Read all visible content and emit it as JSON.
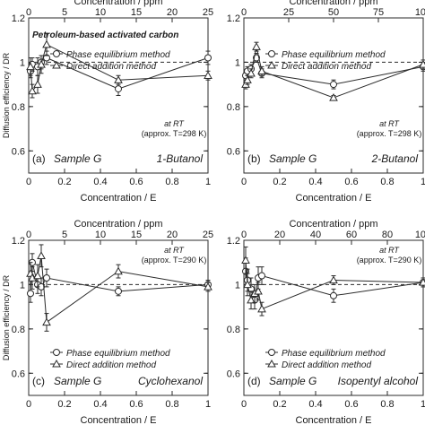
{
  "chart_data": [
    {
      "type": "line",
      "label": "(a)",
      "sample": "Sample G",
      "compound": "1-Butanol",
      "title": "Petroleum-based activated carbon",
      "condition_line1": "at RT",
      "condition_line2": "(approx. T=298 K)",
      "xlabel": "Concentration / E",
      "top_xlabel": "Concentration / ppm",
      "ylabel": "Diffusion efficiency / DR",
      "xlim": [
        0,
        1
      ],
      "ylim": [
        0.5,
        1.2
      ],
      "xticks": [
        "0",
        "0.2",
        "0.4",
        "0.6",
        "0.8",
        "1"
      ],
      "yticks": [
        "0.6",
        "0.8",
        "1",
        "1.2"
      ],
      "top_xlim": [
        0,
        25
      ],
      "top_xticks": [
        "0",
        "5",
        "10",
        "15",
        "20",
        "25"
      ],
      "reference_line": 1,
      "series": [
        {
          "name": "Phase equilibrium method",
          "marker": "circle",
          "x": [
            0.01,
            0.02,
            0.05,
            0.07,
            0.1,
            0.5,
            1.0
          ],
          "y": [
            0.96,
            0.99,
            0.98,
            1.0,
            1.02,
            0.88,
            1.02
          ],
          "err": [
            0.03,
            0.03,
            0.04,
            0.03,
            0.03,
            0.03,
            0.03
          ]
        },
        {
          "name": "Direct addition method",
          "marker": "triangle",
          "x": [
            0.01,
            0.02,
            0.05,
            0.07,
            0.1,
            0.5,
            1.0
          ],
          "y": [
            0.98,
            0.87,
            0.9,
            0.99,
            1.08,
            0.92,
            0.94
          ],
          "err": [
            0.04,
            0.03,
            0.04,
            0.04,
            0.05,
            0.02,
            0.02
          ]
        }
      ]
    },
    {
      "type": "line",
      "label": "(b)",
      "sample": "Sample G",
      "compound": "2-Butanol",
      "condition_line1": "at RT",
      "condition_line2": "(approx. T=298 K)",
      "xlabel": "Concentration / E",
      "top_xlabel": "Concentration / ppm",
      "xlim": [
        0,
        1
      ],
      "ylim": [
        0.5,
        1.2
      ],
      "xticks": [
        "0",
        "0.2",
        "0.4",
        "0.6",
        "0.8",
        "1"
      ],
      "yticks": [
        "0.6",
        "0.8",
        "1",
        "1.2"
      ],
      "top_xlim": [
        0,
        100
      ],
      "top_xticks": [
        "0",
        "25",
        "50",
        "75",
        "100"
      ],
      "reference_line": 1,
      "series": [
        {
          "name": "Phase equilibrium method",
          "marker": "circle",
          "x": [
            0.01,
            0.02,
            0.04,
            0.07,
            0.1,
            0.5,
            1.0
          ],
          "y": [
            0.94,
            0.96,
            0.97,
            1.02,
            0.95,
            0.9,
            0.98
          ],
          "err": [
            0.02,
            0.02,
            0.02,
            0.02,
            0.02,
            0.02,
            0.02
          ]
        },
        {
          "name": "Direct addition method",
          "marker": "triangle",
          "x": [
            0.01,
            0.02,
            0.04,
            0.07,
            0.1,
            0.5,
            1.0
          ],
          "y": [
            0.9,
            0.92,
            0.95,
            1.07,
            0.96,
            0.84,
            0.99
          ],
          "err": [
            0.02,
            0.02,
            0.02,
            0.02,
            0.02,
            0.01,
            0.02
          ]
        }
      ]
    },
    {
      "type": "line",
      "label": "(c)",
      "sample": "Sample G",
      "compound": "Cyclohexanol",
      "condition_line1": "at RT",
      "condition_line2": "(approx. T=290 K)",
      "xlabel": "Concentration / E",
      "top_xlabel": "Concentration / ppm",
      "ylabel": "Diffusion efficiency / DR",
      "xlim": [
        0,
        1
      ],
      "ylim": [
        0.5,
        1.2
      ],
      "xticks": [
        "0",
        "0.2",
        "0.4",
        "0.6",
        "0.8",
        "1"
      ],
      "yticks": [
        "0.6",
        "0.8",
        "1",
        "1.2"
      ],
      "top_xlim": [
        0,
        25
      ],
      "top_xticks": [
        "0",
        "5",
        "10",
        "15",
        "20",
        "25"
      ],
      "reference_line": 1,
      "series": [
        {
          "name": "Phase equilibrium method",
          "marker": "circle",
          "x": [
            0.01,
            0.02,
            0.05,
            0.07,
            0.1,
            0.5,
            1.0
          ],
          "y": [
            0.96,
            1.1,
            1.0,
            0.99,
            1.03,
            0.97,
            1.0
          ],
          "err": [
            0.04,
            0.04,
            0.04,
            0.04,
            0.04,
            0.02,
            0.02
          ]
        },
        {
          "name": "Direct addition method",
          "marker": "triangle",
          "x": [
            0.01,
            0.02,
            0.05,
            0.07,
            0.1,
            0.5,
            1.0
          ],
          "y": [
            1.05,
            1.03,
            1.04,
            1.13,
            0.83,
            1.06,
            0.99
          ],
          "err": [
            0.05,
            0.05,
            0.05,
            0.05,
            0.04,
            0.03,
            0.02
          ]
        }
      ]
    },
    {
      "type": "line",
      "label": "(d)",
      "sample": "Sample G",
      "compound": "Isopentyl alcohol",
      "condition_line1": "at RT",
      "condition_line2": "(approx. T=290 K)",
      "xlabel": "Concentration / E",
      "top_xlabel": "Concentration / ppm",
      "xlim": [
        0,
        1
      ],
      "ylim": [
        0.5,
        1.2
      ],
      "xticks": [
        "0",
        "0.2",
        "0.4",
        "0.6",
        "0.8",
        "1"
      ],
      "yticks": [
        "0.6",
        "0.8",
        "1",
        "1.2"
      ],
      "top_xlim": [
        0,
        100
      ],
      "top_xticks": [
        "0",
        "20",
        "40",
        "60",
        "80",
        "100"
      ],
      "reference_line": 1,
      "series": [
        {
          "name": "Phase equilibrium method",
          "marker": "circle",
          "x": [
            0.01,
            0.02,
            0.04,
            0.06,
            0.08,
            0.1,
            0.5,
            1.0
          ],
          "y": [
            1.06,
            1.02,
            0.98,
            0.93,
            1.03,
            1.04,
            0.95,
            1.01
          ],
          "err": [
            0.06,
            0.05,
            0.05,
            0.04,
            0.05,
            0.04,
            0.03,
            0.02
          ]
        },
        {
          "name": "Direct addition method",
          "marker": "triangle",
          "x": [
            0.01,
            0.02,
            0.04,
            0.06,
            0.08,
            0.1,
            0.5,
            1.0
          ],
          "y": [
            1.11,
            1.0,
            0.93,
            0.96,
            0.97,
            0.89,
            1.02,
            1.01
          ],
          "err": [
            0.06,
            0.05,
            0.04,
            0.04,
            0.04,
            0.03,
            0.02,
            0.02
          ]
        }
      ]
    }
  ]
}
